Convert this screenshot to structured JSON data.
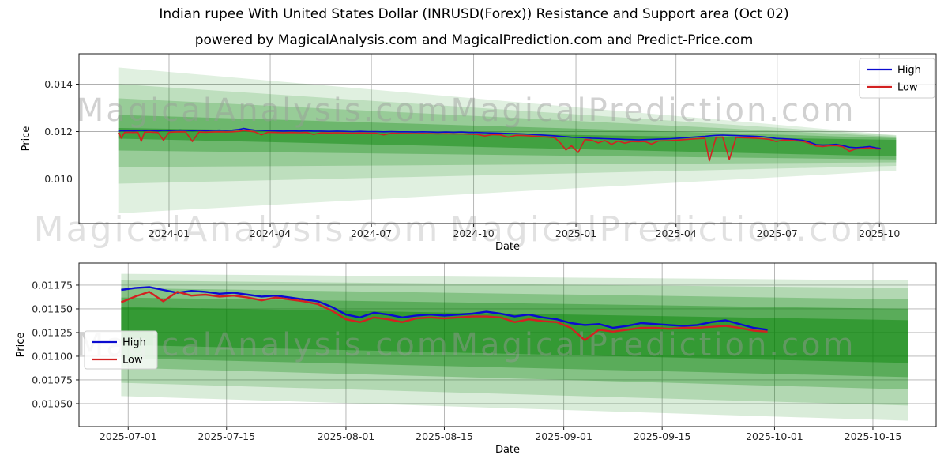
{
  "title": "Indian rupee With United States Dollar (INRUSD(Forex)) Resistance and Support area (Oct 02)",
  "subtitle": "powered by MagicalAnalysis.com and MagicalPrediction.com and Predict-Price.com",
  "watermarks": {
    "left": "MagicalAnalysis.com",
    "right": "MagicalPrediction.com"
  },
  "colors": {
    "high_line": "#0b0bd0",
    "low_line": "#d32121",
    "band_green": "#008000",
    "grid": "#b0b0b0",
    "spine": "#1a1a1a",
    "tick_text": "#262626",
    "watermark": "#9a9a9a",
    "legend_border": "#cccccc"
  },
  "chart_data": [
    {
      "type": "line",
      "name": "full-history",
      "xlabel": "Date",
      "ylabel": "Price",
      "xlim": [
        "2023-10-12",
        "2025-11-21"
      ],
      "ylim": [
        0.008117,
        0.015283
      ],
      "grid": true,
      "legend_position": "upper right",
      "legend": [
        {
          "label": "High",
          "color": "#0b0bd0"
        },
        {
          "label": "Low",
          "color": "#d32121"
        }
      ],
      "xticks": [
        {
          "label": "2024-01",
          "date": "2024-01-01"
        },
        {
          "label": "2024-04",
          "date": "2024-04-01"
        },
        {
          "label": "2024-07",
          "date": "2024-07-01"
        },
        {
          "label": "2024-10",
          "date": "2024-10-01"
        },
        {
          "label": "2025-01",
          "date": "2025-01-01"
        },
        {
          "label": "2025-04",
          "date": "2025-04-01"
        },
        {
          "label": "2025-07",
          "date": "2025-07-01"
        },
        {
          "label": "2025-10",
          "date": "2025-10-01"
        }
      ],
      "yticks": [
        {
          "label": "0.010",
          "value": 0.01
        },
        {
          "label": "0.012",
          "value": 0.012
        },
        {
          "label": "0.014",
          "value": 0.014
        }
      ],
      "bands": [
        {
          "x0": "2023-11-17",
          "x1": "2025-10-16",
          "top0": 0.0147,
          "bot0": 0.00855,
          "top1": 0.01185,
          "bot1": 0.01035,
          "opacity": 0.12
        },
        {
          "x0": "2023-11-17",
          "x1": "2025-10-16",
          "top0": 0.014,
          "bot0": 0.0098,
          "top1": 0.01183,
          "bot1": 0.01055,
          "opacity": 0.15
        },
        {
          "x0": "2023-11-17",
          "x1": "2025-10-16",
          "top0": 0.0134,
          "bot0": 0.0105,
          "top1": 0.01178,
          "bot1": 0.0107,
          "opacity": 0.2
        },
        {
          "x0": "2023-11-17",
          "x1": "2025-10-16",
          "top0": 0.0127,
          "bot0": 0.0112,
          "top1": 0.01172,
          "bot1": 0.01082,
          "opacity": 0.28
        },
        {
          "x0": "2023-11-17",
          "x1": "2025-10-16",
          "top0": 0.01215,
          "bot0": 0.0117,
          "top1": 0.01165,
          "bot1": 0.01095,
          "opacity": 0.4
        }
      ],
      "points": [
        [
          "2023-11-17",
          0.01202,
          0.01195
        ],
        [
          "2023-11-19",
          0.01204,
          0.01172
        ],
        [
          "2023-11-22",
          0.01203,
          0.01196
        ],
        [
          "2023-11-26",
          0.01204,
          0.01197
        ],
        [
          "2023-11-30",
          0.01203,
          0.01196
        ],
        [
          "2023-12-04",
          0.01204,
          0.01197
        ],
        [
          "2023-12-07",
          0.01205,
          0.01159
        ],
        [
          "2023-12-10",
          0.01204,
          0.01197
        ],
        [
          "2023-12-14",
          0.01205,
          0.01198
        ],
        [
          "2023-12-18",
          0.01204,
          0.01197
        ],
        [
          "2023-12-22",
          0.01203,
          0.01196
        ],
        [
          "2023-12-27",
          0.01205,
          0.01163
        ],
        [
          "2024-01-01",
          0.01204,
          0.01197
        ],
        [
          "2024-01-06",
          0.01205,
          0.01198
        ],
        [
          "2024-01-11",
          0.01206,
          0.01199
        ],
        [
          "2024-01-16",
          0.01205,
          0.01198
        ],
        [
          "2024-01-22",
          0.01204,
          0.01158
        ],
        [
          "2024-01-28",
          0.01205,
          0.01198
        ],
        [
          "2024-02-03",
          0.01204,
          0.01197
        ],
        [
          "2024-02-09",
          0.01205,
          0.01198
        ],
        [
          "2024-02-15",
          0.01206,
          0.01199
        ],
        [
          "2024-02-21",
          0.01205,
          0.01198
        ],
        [
          "2024-02-27",
          0.01206,
          0.01199
        ],
        [
          "2024-03-04",
          0.01209,
          0.01201
        ],
        [
          "2024-03-08",
          0.01213,
          0.01205
        ],
        [
          "2024-03-13",
          0.01209,
          0.01202
        ],
        [
          "2024-03-18",
          0.01206,
          0.01199
        ],
        [
          "2024-03-24",
          0.01205,
          0.01186
        ],
        [
          "2024-03-30",
          0.01204,
          0.01197
        ],
        [
          "2024-04-06",
          0.01203,
          0.01196
        ],
        [
          "2024-04-13",
          0.01202,
          0.01195
        ],
        [
          "2024-04-20",
          0.01203,
          0.01196
        ],
        [
          "2024-04-27",
          0.01202,
          0.01195
        ],
        [
          "2024-05-04",
          0.01203,
          0.01196
        ],
        [
          "2024-05-10",
          0.01202,
          0.01188
        ],
        [
          "2024-05-17",
          0.01202,
          0.01195
        ],
        [
          "2024-05-24",
          0.01201,
          0.01194
        ],
        [
          "2024-05-31",
          0.01202,
          0.01195
        ],
        [
          "2024-06-07",
          0.01201,
          0.01194
        ],
        [
          "2024-06-14",
          0.012,
          0.01193
        ],
        [
          "2024-06-21",
          0.01201,
          0.01194
        ],
        [
          "2024-06-28",
          0.012,
          0.01193
        ],
        [
          "2024-07-05",
          0.012,
          0.01193
        ],
        [
          "2024-07-12",
          0.01199,
          0.01186
        ],
        [
          "2024-07-19",
          0.012,
          0.01193
        ],
        [
          "2024-07-26",
          0.01199,
          0.01192
        ],
        [
          "2024-08-02",
          0.01199,
          0.01192
        ],
        [
          "2024-08-09",
          0.01198,
          0.01191
        ],
        [
          "2024-08-16",
          0.01199,
          0.01192
        ],
        [
          "2024-08-23",
          0.01198,
          0.01191
        ],
        [
          "2024-08-30",
          0.01197,
          0.0119
        ],
        [
          "2024-09-06",
          0.01198,
          0.01191
        ],
        [
          "2024-09-13",
          0.01197,
          0.0119
        ],
        [
          "2024-09-20",
          0.01198,
          0.0119
        ],
        [
          "2024-09-27",
          0.01196,
          0.01189
        ],
        [
          "2024-10-04",
          0.01196,
          0.01188
        ],
        [
          "2024-10-11",
          0.01195,
          0.01181
        ],
        [
          "2024-10-18",
          0.01194,
          0.01187
        ],
        [
          "2024-10-25",
          0.01193,
          0.01186
        ],
        [
          "2024-11-01",
          0.01192,
          0.01176
        ],
        [
          "2024-11-08",
          0.01191,
          0.01184
        ],
        [
          "2024-11-15",
          0.0119,
          0.01183
        ],
        [
          "2024-11-22",
          0.01188,
          0.01181
        ],
        [
          "2024-11-29",
          0.01186,
          0.01179
        ],
        [
          "2024-12-06",
          0.01184,
          0.01177
        ],
        [
          "2024-12-13",
          0.01182,
          0.01174
        ],
        [
          "2024-12-18",
          0.0118,
          0.01152
        ],
        [
          "2024-12-23",
          0.01178,
          0.01122
        ],
        [
          "2024-12-28",
          0.01176,
          0.0114
        ],
        [
          "2025-01-03",
          0.01175,
          0.01112
        ],
        [
          "2025-01-09",
          0.01174,
          0.01166
        ],
        [
          "2025-01-15",
          0.01172,
          0.01164
        ],
        [
          "2025-01-21",
          0.01171,
          0.01152
        ],
        [
          "2025-01-27",
          0.0117,
          0.01162
        ],
        [
          "2025-02-02",
          0.01169,
          0.01146
        ],
        [
          "2025-02-08",
          0.01168,
          0.0116
        ],
        [
          "2025-02-14",
          0.01167,
          0.01151
        ],
        [
          "2025-02-20",
          0.01166,
          0.01158
        ],
        [
          "2025-02-26",
          0.01165,
          0.01157
        ],
        [
          "2025-03-04",
          0.01166,
          0.01158
        ],
        [
          "2025-03-10",
          0.01167,
          0.01147
        ],
        [
          "2025-03-16",
          0.01168,
          0.0116
        ],
        [
          "2025-03-22",
          0.01169,
          0.01161
        ],
        [
          "2025-03-28",
          0.0117,
          0.01162
        ],
        [
          "2025-04-03",
          0.01172,
          0.01164
        ],
        [
          "2025-04-09",
          0.01174,
          0.01166
        ],
        [
          "2025-04-15",
          0.01176,
          0.01168
        ],
        [
          "2025-04-21",
          0.01178,
          0.0117
        ],
        [
          "2025-04-27",
          0.0118,
          0.01172
        ],
        [
          "2025-05-01",
          0.01182,
          0.01076
        ],
        [
          "2025-05-07",
          0.01184,
          0.01176
        ],
        [
          "2025-05-13",
          0.01185,
          0.01177
        ],
        [
          "2025-05-19",
          0.01184,
          0.01082
        ],
        [
          "2025-05-25",
          0.01183,
          0.01175
        ],
        [
          "2025-05-31",
          0.01182,
          0.01174
        ],
        [
          "2025-06-06",
          0.01181,
          0.01173
        ],
        [
          "2025-06-12",
          0.0118,
          0.01172
        ],
        [
          "2025-06-18",
          0.01178,
          0.0117
        ],
        [
          "2025-06-24",
          0.01175,
          0.01167
        ],
        [
          "2025-06-30",
          0.01171,
          0.01158
        ],
        [
          "2025-07-06",
          0.0117,
          0.01164
        ],
        [
          "2025-07-12",
          0.01168,
          0.01163
        ],
        [
          "2025-07-18",
          0.01166,
          0.01161
        ],
        [
          "2025-07-24",
          0.01163,
          0.01159
        ],
        [
          "2025-07-30",
          0.01156,
          0.0115
        ],
        [
          "2025-08-05",
          0.01145,
          0.01139
        ],
        [
          "2025-08-11",
          0.01143,
          0.01137
        ],
        [
          "2025-08-17",
          0.01144,
          0.0114
        ],
        [
          "2025-08-23",
          0.01146,
          0.01141
        ],
        [
          "2025-08-29",
          0.01141,
          0.01136
        ],
        [
          "2025-09-04",
          0.01134,
          0.01117
        ],
        [
          "2025-09-10",
          0.01132,
          0.01127
        ],
        [
          "2025-09-16",
          0.01134,
          0.01129
        ],
        [
          "2025-09-22",
          0.01137,
          0.01131
        ],
        [
          "2025-09-28",
          0.01131,
          0.01127
        ],
        [
          "2025-10-02",
          0.01129,
          0.01126
        ]
      ]
    },
    {
      "type": "line",
      "name": "recent-zoom",
      "xlabel": "Date",
      "ylabel": "Price",
      "xlim": [
        "2025-06-24",
        "2025-10-24"
      ],
      "ylim": [
        0.010258,
        0.011983
      ],
      "grid": true,
      "legend_position": "center left",
      "legend": [
        {
          "label": "High",
          "color": "#0b0bd0"
        },
        {
          "label": "Low",
          "color": "#d32121"
        }
      ],
      "xticks": [
        {
          "label": "2025-07-01",
          "date": "2025-07-01"
        },
        {
          "label": "2025-07-15",
          "date": "2025-07-15"
        },
        {
          "label": "2025-08-01",
          "date": "2025-08-01"
        },
        {
          "label": "2025-08-15",
          "date": "2025-08-15"
        },
        {
          "label": "2025-09-01",
          "date": "2025-09-01"
        },
        {
          "label": "2025-09-15",
          "date": "2025-09-15"
        },
        {
          "label": "2025-10-01",
          "date": "2025-10-01"
        },
        {
          "label": "2025-10-15",
          "date": "2025-10-15"
        }
      ],
      "yticks": [
        {
          "label": "0.01050",
          "value": 0.0105
        },
        {
          "label": "0.01075",
          "value": 0.01075
        },
        {
          "label": "0.01100",
          "value": 0.011
        },
        {
          "label": "0.01125",
          "value": 0.01125
        },
        {
          "label": "0.01150",
          "value": 0.0115
        },
        {
          "label": "0.01175",
          "value": 0.01175
        }
      ],
      "bands": [
        {
          "x0": "2025-06-30",
          "x1": "2025-10-20",
          "top0": 0.01187,
          "bot0": 0.01058,
          "top1": 0.0118,
          "bot1": 0.01032,
          "opacity": 0.15
        },
        {
          "x0": "2025-06-30",
          "x1": "2025-10-20",
          "top0": 0.0118,
          "bot0": 0.01072,
          "top1": 0.01172,
          "bot1": 0.01048,
          "opacity": 0.18
        },
        {
          "x0": "2025-06-30",
          "x1": "2025-10-20",
          "top0": 0.01172,
          "bot0": 0.01088,
          "top1": 0.0116,
          "bot1": 0.01065,
          "opacity": 0.25
        },
        {
          "x0": "2025-06-30",
          "x1": "2025-10-20",
          "top0": 0.01162,
          "bot0": 0.01098,
          "top1": 0.0115,
          "bot1": 0.01078,
          "opacity": 0.32
        },
        {
          "x0": "2025-06-30",
          "x1": "2025-10-20",
          "top0": 0.01152,
          "bot0": 0.01112,
          "top1": 0.01138,
          "bot1": 0.01093,
          "opacity": 0.42
        }
      ],
      "points": [
        [
          "2025-06-30",
          0.0117,
          0.01157
        ],
        [
          "2025-07-02",
          0.01172,
          0.01163
        ],
        [
          "2025-07-04",
          0.01173,
          0.01168
        ],
        [
          "2025-07-06",
          0.0117,
          0.01158
        ],
        [
          "2025-07-08",
          0.01167,
          0.01168
        ],
        [
          "2025-07-10",
          0.01169,
          0.01164
        ],
        [
          "2025-07-12",
          0.01168,
          0.01165
        ],
        [
          "2025-07-14",
          0.01166,
          0.01163
        ],
        [
          "2025-07-16",
          0.01167,
          0.01164
        ],
        [
          "2025-07-18",
          0.01165,
          0.01162
        ],
        [
          "2025-07-20",
          0.01163,
          0.01159
        ],
        [
          "2025-07-22",
          0.01164,
          0.01162
        ],
        [
          "2025-07-24",
          0.01162,
          0.0116
        ],
        [
          "2025-07-26",
          0.0116,
          0.01158
        ],
        [
          "2025-07-28",
          0.01158,
          0.01155
        ],
        [
          "2025-07-30",
          0.01152,
          0.01148
        ],
        [
          "2025-08-01",
          0.01144,
          0.01139
        ],
        [
          "2025-08-03",
          0.01141,
          0.01136
        ],
        [
          "2025-08-05",
          0.01146,
          0.01141
        ],
        [
          "2025-08-07",
          0.01144,
          0.01139
        ],
        [
          "2025-08-09",
          0.01141,
          0.01136
        ],
        [
          "2025-08-11",
          0.01143,
          0.0114
        ],
        [
          "2025-08-13",
          0.01144,
          0.01141
        ],
        [
          "2025-08-15",
          0.01143,
          0.0114
        ],
        [
          "2025-08-17",
          0.01144,
          0.01141
        ],
        [
          "2025-08-19",
          0.01145,
          0.01142
        ],
        [
          "2025-08-21",
          0.01147,
          0.01142
        ],
        [
          "2025-08-23",
          0.01145,
          0.01141
        ],
        [
          "2025-08-25",
          0.01142,
          0.01136
        ],
        [
          "2025-08-27",
          0.01144,
          0.01139
        ],
        [
          "2025-08-29",
          0.01141,
          0.01137
        ],
        [
          "2025-08-31",
          0.01139,
          0.01136
        ],
        [
          "2025-09-02",
          0.01135,
          0.0113
        ],
        [
          "2025-09-04",
          0.01133,
          0.01117
        ],
        [
          "2025-09-06",
          0.01134,
          0.01128
        ],
        [
          "2025-09-08",
          0.0113,
          0.01126
        ],
        [
          "2025-09-10",
          0.01132,
          0.01128
        ],
        [
          "2025-09-12",
          0.01135,
          0.0113
        ],
        [
          "2025-09-14",
          0.01134,
          0.0113
        ],
        [
          "2025-09-16",
          0.01133,
          0.01129
        ],
        [
          "2025-09-18",
          0.01132,
          0.0113
        ],
        [
          "2025-09-20",
          0.01133,
          0.0113
        ],
        [
          "2025-09-22",
          0.01136,
          0.01131
        ],
        [
          "2025-09-24",
          0.01138,
          0.01132
        ],
        [
          "2025-09-26",
          0.01134,
          0.0113
        ],
        [
          "2025-09-28",
          0.0113,
          0.01127
        ],
        [
          "2025-09-30",
          0.01128,
          0.01126
        ]
      ]
    }
  ]
}
